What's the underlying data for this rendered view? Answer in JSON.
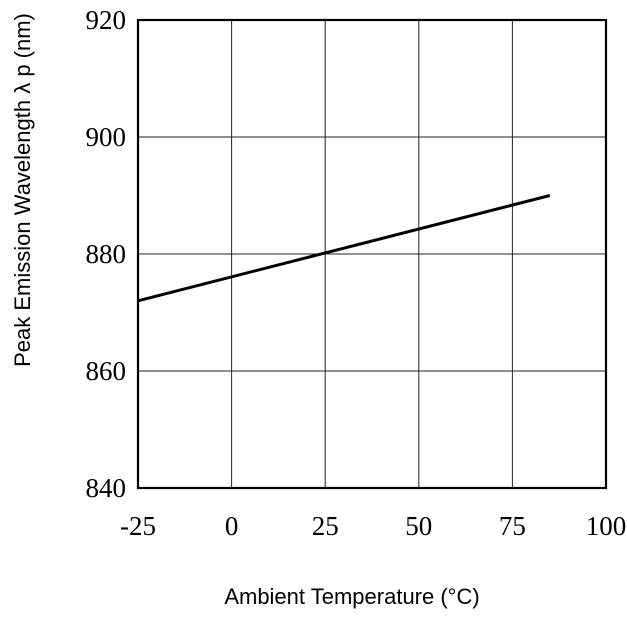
{
  "chart_data": {
    "type": "line",
    "title": "",
    "xlabel": "Ambient Temperature (°C)",
    "ylabel": "Peak Emission Wavelength  λ p (nm)",
    "xlim": [
      -25,
      100
    ],
    "ylim": [
      840,
      920
    ],
    "xticks": [
      "-25",
      "0",
      "25",
      "50",
      "75",
      "100"
    ],
    "yticks": [
      "840",
      "860",
      "880",
      "900",
      "920"
    ],
    "grid": true,
    "series": [
      {
        "x": [
          -25,
          85
        ],
        "y": [
          872,
          890
        ]
      }
    ],
    "colors": {
      "line": "#000000",
      "grid": "#222222",
      "frame": "#000000",
      "background": "#ffffff"
    }
  }
}
